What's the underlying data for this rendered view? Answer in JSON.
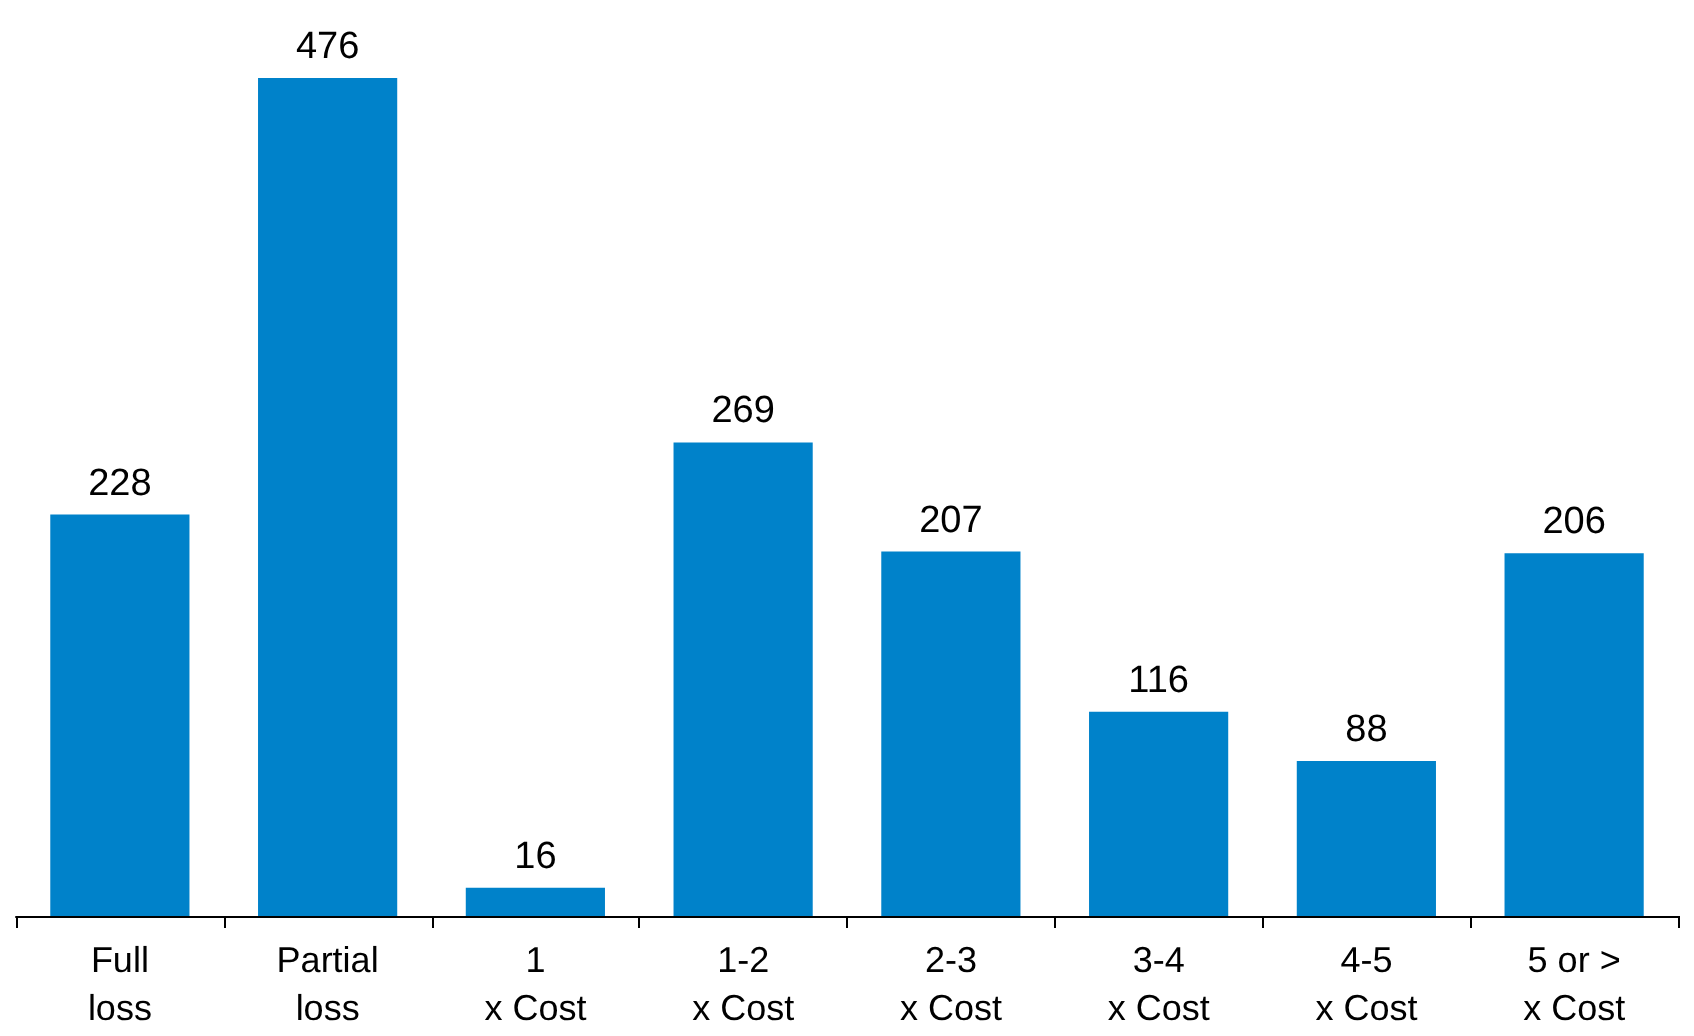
{
  "chart_data": {
    "type": "bar",
    "categories": [
      "Full\nloss",
      "Partial\nloss",
      "1\nx Cost",
      "1-2\nx Cost",
      "2-3\nx Cost",
      "3-4\nx Cost",
      "4-5\nx Cost",
      "5 or >\nx Cost"
    ],
    "values": [
      228,
      476,
      16,
      269,
      207,
      116,
      88,
      206
    ],
    "color": "#0082ca",
    "data_labels": true
  }
}
